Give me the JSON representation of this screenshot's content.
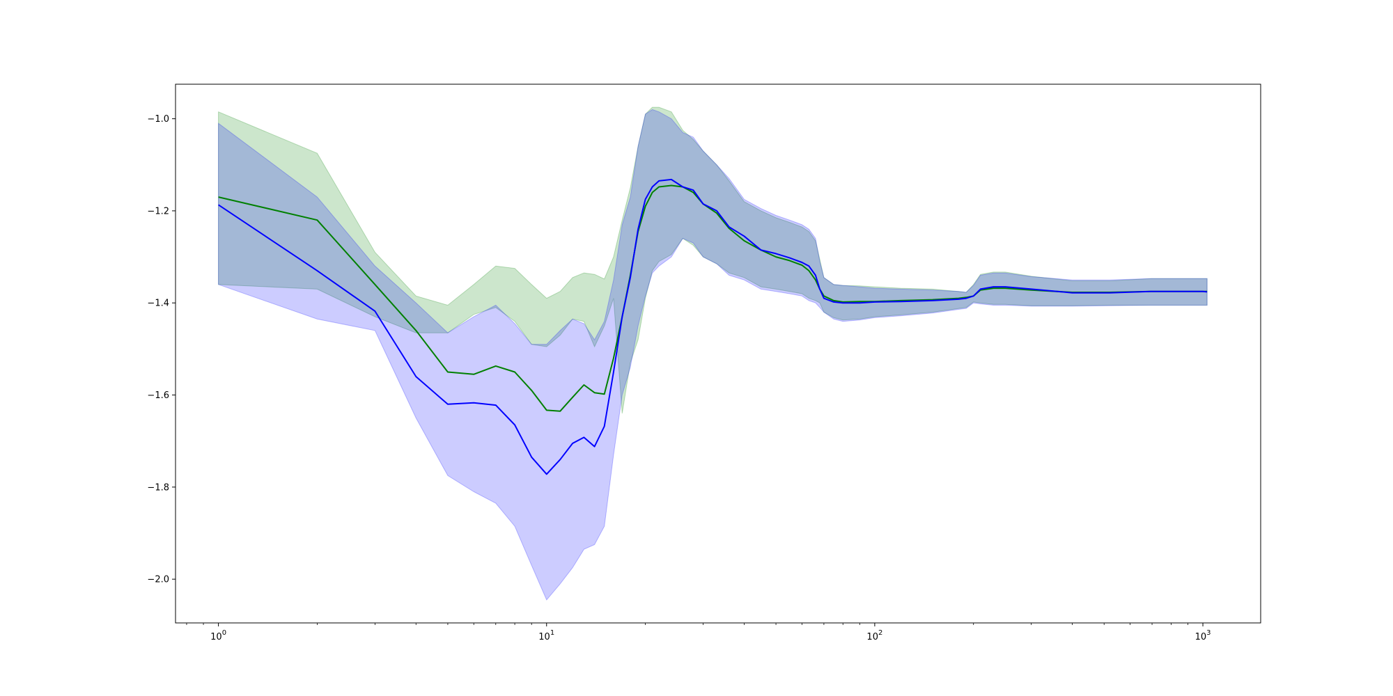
{
  "chart_data": {
    "type": "line",
    "title": "",
    "xlabel": "",
    "ylabel": "",
    "xscale": "log",
    "xlim": [
      0.74,
      1500
    ],
    "ylim": [
      -2.095,
      -0.925
    ],
    "grid": false,
    "legend": "none",
    "x_ticks": [
      {
        "value": 1,
        "base": "10",
        "exp": "0"
      },
      {
        "value": 10,
        "base": "10",
        "exp": "1"
      },
      {
        "value": 100,
        "base": "10",
        "exp": "2"
      },
      {
        "value": 1000,
        "base": "10",
        "exp": "3"
      }
    ],
    "y_ticks": [
      {
        "value": -1.0,
        "label": "−1.0"
      },
      {
        "value": -1.2,
        "label": "−1.2"
      },
      {
        "value": -1.4,
        "label": "−1.4"
      },
      {
        "value": -1.6,
        "label": "−1.6"
      },
      {
        "value": -1.8,
        "label": "−1.8"
      },
      {
        "value": -2.0,
        "label": "−2.0"
      }
    ],
    "series": [
      {
        "color": "#008000",
        "band_color": "#008000",
        "band_opacity": 0.2,
        "x": [
          1,
          2,
          3,
          4,
          5,
          6,
          7,
          8,
          9,
          10,
          11,
          12,
          13,
          14,
          15,
          16,
          17,
          18,
          19,
          20,
          21,
          22,
          24,
          26,
          28,
          30,
          33,
          36,
          40,
          45,
          50,
          55,
          60,
          63,
          66,
          68,
          70,
          75,
          80,
          90,
          100,
          120,
          150,
          180,
          190,
          200,
          210,
          230,
          250,
          300,
          400,
          520,
          700,
          1000,
          1030
        ],
        "mean": [
          -1.17,
          -1.22,
          -1.36,
          -1.46,
          -1.55,
          -1.555,
          -1.537,
          -1.55,
          -1.59,
          -1.633,
          -1.635,
          -1.605,
          -1.578,
          -1.595,
          -1.598,
          -1.52,
          -1.43,
          -1.34,
          -1.245,
          -1.19,
          -1.16,
          -1.148,
          -1.145,
          -1.148,
          -1.16,
          -1.185,
          -1.205,
          -1.238,
          -1.265,
          -1.285,
          -1.3,
          -1.308,
          -1.318,
          -1.33,
          -1.35,
          -1.37,
          -1.385,
          -1.395,
          -1.398,
          -1.397,
          -1.397,
          -1.395,
          -1.393,
          -1.39,
          -1.388,
          -1.385,
          -1.372,
          -1.368,
          -1.368,
          -1.372,
          -1.377,
          -1.377,
          -1.375,
          -1.375,
          -1.375
        ],
        "upper": [
          -0.985,
          -1.075,
          -1.29,
          -1.385,
          -1.405,
          -1.36,
          -1.32,
          -1.325,
          -1.36,
          -1.39,
          -1.375,
          -1.345,
          -1.335,
          -1.338,
          -1.348,
          -1.3,
          -1.22,
          -1.15,
          -1.06,
          -0.99,
          -0.975,
          -0.975,
          -0.985,
          -1.025,
          -1.045,
          -1.07,
          -1.1,
          -1.135,
          -1.18,
          -1.2,
          -1.215,
          -1.225,
          -1.235,
          -1.245,
          -1.265,
          -1.305,
          -1.345,
          -1.36,
          -1.362,
          -1.363,
          -1.365,
          -1.368,
          -1.37,
          -1.375,
          -1.377,
          -1.36,
          -1.338,
          -1.333,
          -1.333,
          -1.342,
          -1.352,
          -1.352,
          -1.347,
          -1.347,
          -1.347
        ],
        "lower": [
          -1.36,
          -1.37,
          -1.43,
          -1.465,
          -1.465,
          -1.425,
          -1.41,
          -1.44,
          -1.49,
          -1.495,
          -1.47,
          -1.435,
          -1.44,
          -1.495,
          -1.45,
          -1.39,
          -1.64,
          -1.53,
          -1.48,
          -1.39,
          -1.33,
          -1.31,
          -1.295,
          -1.26,
          -1.275,
          -1.3,
          -1.315,
          -1.335,
          -1.345,
          -1.365,
          -1.37,
          -1.375,
          -1.38,
          -1.39,
          -1.395,
          -1.4,
          -1.42,
          -1.432,
          -1.437,
          -1.435,
          -1.43,
          -1.426,
          -1.42,
          -1.412,
          -1.41,
          -1.398,
          -1.4,
          -1.403,
          -1.403,
          -1.406,
          -1.406,
          -1.405,
          -1.405,
          -1.405,
          -1.405
        ]
      },
      {
        "color": "#0000ff",
        "band_color": "#0000ff",
        "band_opacity": 0.2,
        "x": [
          1,
          2,
          3,
          4,
          5,
          6,
          7,
          8,
          9,
          10,
          11,
          12,
          13,
          14,
          15,
          16,
          17,
          18,
          19,
          20,
          21,
          22,
          24,
          26,
          28,
          30,
          33,
          36,
          40,
          45,
          50,
          55,
          60,
          63,
          66,
          68,
          70,
          75,
          80,
          90,
          100,
          120,
          150,
          180,
          190,
          200,
          210,
          230,
          250,
          300,
          400,
          520,
          700,
          1000,
          1030
        ],
        "mean": [
          -1.187,
          -1.33,
          -1.418,
          -1.56,
          -1.62,
          -1.617,
          -1.622,
          -1.665,
          -1.735,
          -1.772,
          -1.74,
          -1.705,
          -1.692,
          -1.712,
          -1.668,
          -1.55,
          -1.43,
          -1.345,
          -1.24,
          -1.175,
          -1.148,
          -1.135,
          -1.132,
          -1.148,
          -1.155,
          -1.185,
          -1.2,
          -1.235,
          -1.255,
          -1.285,
          -1.293,
          -1.302,
          -1.312,
          -1.32,
          -1.34,
          -1.37,
          -1.39,
          -1.398,
          -1.4,
          -1.4,
          -1.398,
          -1.397,
          -1.395,
          -1.392,
          -1.39,
          -1.385,
          -1.37,
          -1.365,
          -1.365,
          -1.37,
          -1.378,
          -1.378,
          -1.375,
          -1.375,
          -1.376
        ],
        "upper": [
          -1.01,
          -1.17,
          -1.32,
          -1.4,
          -1.465,
          -1.43,
          -1.405,
          -1.445,
          -1.49,
          -1.49,
          -1.46,
          -1.435,
          -1.445,
          -1.48,
          -1.44,
          -1.35,
          -1.23,
          -1.17,
          -1.06,
          -0.99,
          -0.98,
          -0.985,
          -1.0,
          -1.03,
          -1.04,
          -1.07,
          -1.1,
          -1.13,
          -1.175,
          -1.195,
          -1.21,
          -1.22,
          -1.23,
          -1.24,
          -1.26,
          -1.31,
          -1.345,
          -1.36,
          -1.362,
          -1.365,
          -1.368,
          -1.37,
          -1.372,
          -1.375,
          -1.377,
          -1.362,
          -1.34,
          -1.335,
          -1.335,
          -1.343,
          -1.35,
          -1.35,
          -1.347,
          -1.347,
          -1.347
        ],
        "lower": [
          -1.36,
          -1.435,
          -1.46,
          -1.65,
          -1.775,
          -1.81,
          -1.835,
          -1.885,
          -1.97,
          -2.045,
          -2.01,
          -1.975,
          -1.935,
          -1.925,
          -1.885,
          -1.73,
          -1.6,
          -1.54,
          -1.45,
          -1.385,
          -1.335,
          -1.32,
          -1.3,
          -1.26,
          -1.27,
          -1.3,
          -1.315,
          -1.34,
          -1.35,
          -1.37,
          -1.375,
          -1.38,
          -1.385,
          -1.395,
          -1.4,
          -1.41,
          -1.42,
          -1.435,
          -1.44,
          -1.437,
          -1.432,
          -1.428,
          -1.422,
          -1.414,
          -1.412,
          -1.4,
          -1.402,
          -1.405,
          -1.405,
          -1.407,
          -1.407,
          -1.406,
          -1.405,
          -1.405,
          -1.405
        ]
      }
    ]
  }
}
